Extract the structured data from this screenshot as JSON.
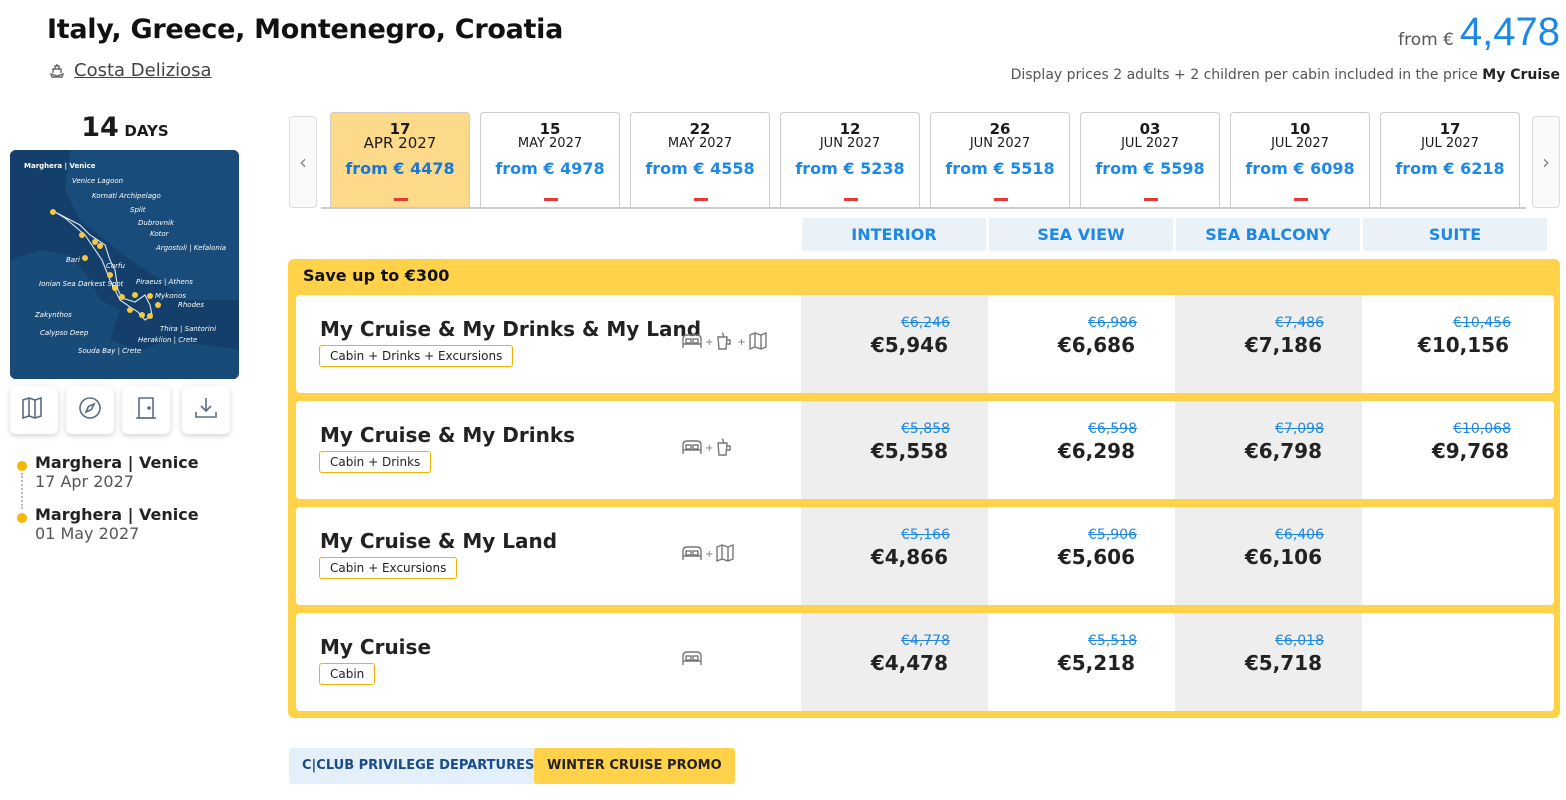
{
  "header": {
    "title": "Italy, Greece, Montenegro, Croatia",
    "ship": "Costa Deliziosa",
    "price_from_label": "from €",
    "price_from_value": "4,478",
    "disclaimer_text": "Display prices 2 adults + 2 children per cabin included in the price",
    "disclaimer_bold": "My Cruise"
  },
  "duration": {
    "number": "14",
    "unit": "DAYS"
  },
  "map_labels": [
    "Marghera | Venice",
    "Venice Lagoon",
    "Kornati Archipelago",
    "Split",
    "Dubrovnik",
    "Kotor",
    "Argostoli | Kefalonia",
    "Bari",
    "Corfu",
    "Ionian Sea Darkest Spot",
    "Piraeus | Athens",
    "Mykonos",
    "Rhodes",
    "Zakynthos",
    "Calypso Deep",
    "Thira | Santorini",
    "Heraklion | Crete",
    "Souda Bay | Crete"
  ],
  "tools": [
    {
      "icon": "map-icon"
    },
    {
      "icon": "compass-icon"
    },
    {
      "icon": "door-icon"
    },
    {
      "icon": "download-icon"
    }
  ],
  "itinerary": [
    {
      "port": "Marghera | Venice",
      "date": "17 Apr 2027"
    },
    {
      "port": "Marghera | Venice",
      "date": "01 May 2027"
    }
  ],
  "dates": [
    {
      "day": "17",
      "month": "APR 2027",
      "price": "from € 4478",
      "active": true
    },
    {
      "day": "15",
      "month": "MAY 2027",
      "price": "from € 4978"
    },
    {
      "day": "22",
      "month": "MAY 2027",
      "price": "from € 4558"
    },
    {
      "day": "12",
      "month": "JUN 2027",
      "price": "from € 5238"
    },
    {
      "day": "26",
      "month": "JUN 2027",
      "price": "from € 5518"
    },
    {
      "day": "03",
      "month": "JUL 2027",
      "price": "from € 5598"
    },
    {
      "day": "10",
      "month": "JUL 2027",
      "price": "from € 6098"
    },
    {
      "day": "17",
      "month": "JUL 2027",
      "price": "from € 6218"
    }
  ],
  "cabin_types": [
    "INTERIOR",
    "SEA VIEW",
    "SEA BALCONY",
    "SUITE"
  ],
  "promo": {
    "label": "Save up to €300",
    "packages": [
      {
        "name": "My Cruise & My Drinks & My Land",
        "badge": "Cabin + Drinks + Excursions",
        "icons": [
          "bed-icon",
          "drink-icon",
          "map-icon"
        ],
        "prices": [
          {
            "old": "€6,246",
            "new": "€5,946"
          },
          {
            "old": "€6,986",
            "new": "€6,686"
          },
          {
            "old": "€7,486",
            "new": "€7,186"
          },
          {
            "old": "€10,456",
            "new": "€10,156"
          }
        ]
      },
      {
        "name": "My Cruise & My Drinks",
        "badge": "Cabin + Drinks",
        "icons": [
          "bed-icon",
          "drink-icon"
        ],
        "prices": [
          {
            "old": "€5,858",
            "new": "€5,558"
          },
          {
            "old": "€6,598",
            "new": "€6,298"
          },
          {
            "old": "€7,098",
            "new": "€6,798"
          },
          {
            "old": "€10,068",
            "new": "€9,768"
          }
        ]
      },
      {
        "name": "My Cruise & My Land",
        "badge": "Cabin + Excursions",
        "icons": [
          "bed-icon",
          "map-icon"
        ],
        "prices": [
          {
            "old": "€5,166",
            "new": "€4,866"
          },
          {
            "old": "€5,906",
            "new": "€5,606"
          },
          {
            "old": "€6,406",
            "new": "€6,106"
          },
          {
            "old": "",
            "new": ""
          }
        ]
      },
      {
        "name": "My Cruise",
        "badge": "Cabin",
        "icons": [
          "bed-icon"
        ],
        "prices": [
          {
            "old": "€4,778",
            "new": "€4,478"
          },
          {
            "old": "€5,518",
            "new": "€5,218"
          },
          {
            "old": "€6,018",
            "new": "€5,718"
          },
          {
            "old": "",
            "new": ""
          }
        ]
      }
    ]
  },
  "tags": [
    "C|CLUB PRIVILEGE DEPARTURES",
    "WINTER CRUISE PROMO"
  ],
  "colors": {
    "accent_blue": "#1e88e5",
    "promo_yellow": "#ffd24a",
    "active_date": "#fdd98a",
    "dash_red": "#e53935"
  }
}
